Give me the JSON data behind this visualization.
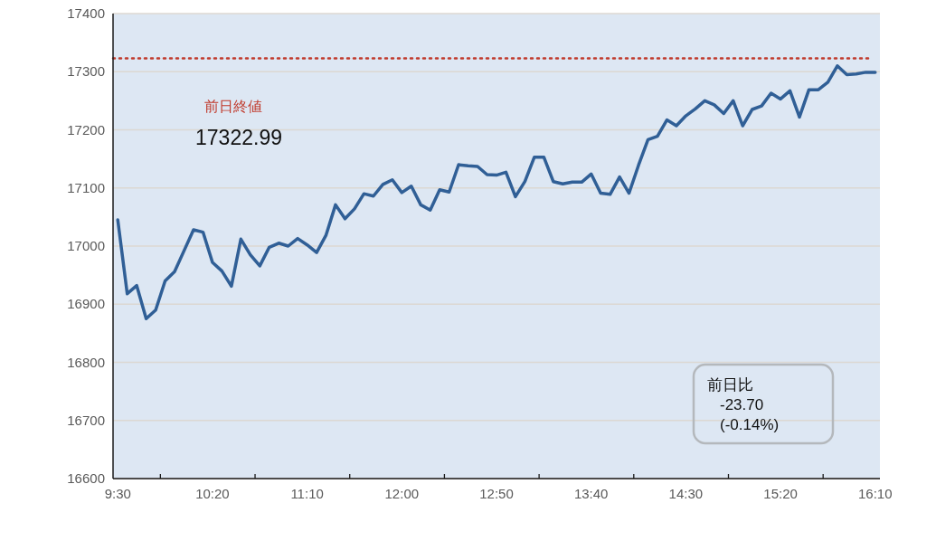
{
  "chart_data": {
    "type": "line",
    "categories": [
      "9:30",
      null,
      null,
      null,
      null,
      null,
      null,
      null,
      null,
      null,
      "10:20",
      null,
      null,
      null,
      null,
      null,
      null,
      null,
      null,
      null,
      "11:10",
      null,
      null,
      null,
      null,
      null,
      null,
      null,
      null,
      null,
      "12:00",
      null,
      null,
      null,
      null,
      null,
      null,
      null,
      null,
      null,
      "12:50",
      null,
      null,
      null,
      null,
      null,
      null,
      null,
      null,
      null,
      "13:40",
      null,
      null,
      null,
      null,
      null,
      null,
      null,
      null,
      null,
      "14:30",
      null,
      null,
      null,
      null,
      null,
      null,
      null,
      null,
      null,
      "15:20",
      null,
      null,
      null,
      null,
      null,
      null,
      null,
      null,
      null,
      "16:10"
    ],
    "series": [
      {
        "color": "#305f96",
        "values": [
          17045,
          16918,
          16932,
          16875,
          16890,
          16940,
          16956,
          16992,
          17028,
          17024,
          16972,
          16957,
          16931,
          17012,
          16985,
          16966,
          16998,
          17005,
          17000,
          17013,
          17002,
          16989,
          17019,
          17071,
          17047,
          17064,
          17090,
          17086,
          17106,
          17114,
          17092,
          17103,
          17071,
          17062,
          17097,
          17093,
          17140,
          17138,
          17137,
          17123,
          17122,
          17127,
          17085,
          17111,
          17153,
          17153,
          17111,
          17107,
          17110,
          17110,
          17124,
          17091,
          17089,
          17119,
          17091,
          17139,
          17183,
          17189,
          17217,
          17207,
          17224,
          17236,
          17250,
          17243,
          17228,
          17250,
          17207,
          17235,
          17241,
          17263,
          17253,
          17267,
          17222,
          17269,
          17269,
          17282,
          17310,
          17295,
          17296,
          17299,
          17299
        ]
      }
    ],
    "ylim": [
      16600,
      17400
    ],
    "yticks": [
      16600,
      16700,
      16800,
      16900,
      17000,
      17100,
      17200,
      17300,
      17400
    ],
    "grid": "y",
    "marker": "none",
    "line_style": "solid",
    "ref_lines": [
      {
        "axis": "y",
        "value": 17322.99,
        "label": "前日終値",
        "color": "#c0392b",
        "line_style": "dotted"
      }
    ],
    "annotations": [
      "17322.99",
      "前日比\n-23.70\n(-0.14%)"
    ]
  }
}
